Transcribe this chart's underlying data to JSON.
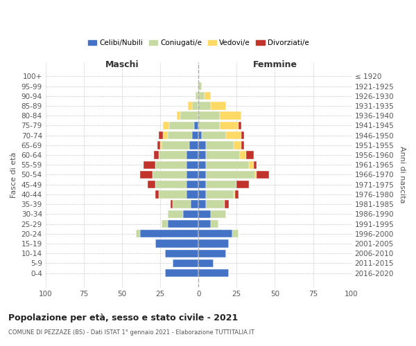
{
  "age_groups": [
    "0-4",
    "5-9",
    "10-14",
    "15-19",
    "20-24",
    "25-29",
    "30-34",
    "35-39",
    "40-44",
    "45-49",
    "50-54",
    "55-59",
    "60-64",
    "65-69",
    "70-74",
    "75-79",
    "80-84",
    "85-89",
    "90-94",
    "95-99",
    "100+"
  ],
  "birth_years": [
    "2016-2020",
    "2011-2015",
    "2006-2010",
    "2001-2005",
    "1996-2000",
    "1991-1995",
    "1986-1990",
    "1981-1985",
    "1976-1980",
    "1971-1975",
    "1966-1970",
    "1961-1965",
    "1956-1960",
    "1951-1955",
    "1946-1950",
    "1941-1945",
    "1936-1940",
    "1931-1935",
    "1926-1930",
    "1921-1925",
    "≤ 1920"
  ],
  "male_celibi": [
    22,
    17,
    22,
    28,
    38,
    20,
    10,
    5,
    8,
    8,
    8,
    8,
    8,
    6,
    4,
    3,
    0,
    0,
    0,
    0,
    0
  ],
  "male_coniugati": [
    0,
    0,
    0,
    0,
    3,
    4,
    10,
    12,
    18,
    20,
    22,
    20,
    18,
    18,
    16,
    16,
    12,
    4,
    2,
    0,
    0
  ],
  "male_vedovi": [
    0,
    0,
    0,
    0,
    0,
    0,
    0,
    0,
    0,
    0,
    0,
    0,
    0,
    1,
    3,
    4,
    2,
    3,
    0,
    0,
    0
  ],
  "male_divorziati": [
    0,
    0,
    0,
    0,
    0,
    0,
    0,
    1,
    2,
    5,
    8,
    8,
    3,
    2,
    3,
    0,
    0,
    0,
    0,
    0,
    0
  ],
  "female_celibi": [
    20,
    10,
    18,
    20,
    22,
    8,
    8,
    5,
    5,
    5,
    5,
    5,
    5,
    5,
    2,
    0,
    0,
    0,
    0,
    0,
    0
  ],
  "female_coniugati": [
    0,
    0,
    0,
    0,
    4,
    5,
    10,
    12,
    18,
    20,
    32,
    28,
    22,
    18,
    16,
    14,
    14,
    8,
    4,
    2,
    0
  ],
  "female_vedovi": [
    0,
    0,
    0,
    0,
    0,
    0,
    0,
    0,
    1,
    0,
    1,
    3,
    4,
    5,
    10,
    12,
    14,
    10,
    4,
    0,
    0
  ],
  "female_divorziati": [
    0,
    0,
    0,
    0,
    0,
    0,
    0,
    3,
    2,
    8,
    8,
    2,
    5,
    2,
    2,
    2,
    0,
    0,
    0,
    0,
    0
  ],
  "colors": {
    "celibi": "#4472c4",
    "coniugati": "#c5d9a0",
    "vedovi": "#ffd966",
    "divorziati": "#c0342c"
  },
  "legend_labels": [
    "Celibi/Nubili",
    "Coniugati/e",
    "Vedovi/e",
    "Divorziati/e"
  ],
  "label_maschi": "Maschi",
  "label_femmine": "Femmine",
  "ylabel_left": "Fasce di età",
  "ylabel_right": "Anni di nascita",
  "title": "Popolazione per età, sesso e stato civile - 2021",
  "subtitle": "COMUNE DI PEZZAZE (BS) - Dati ISTAT 1° gennaio 2021 - Elaborazione TUTTITALIA.IT",
  "xlim": 100,
  "background_color": "#ffffff",
  "grid_color": "#cccccc"
}
